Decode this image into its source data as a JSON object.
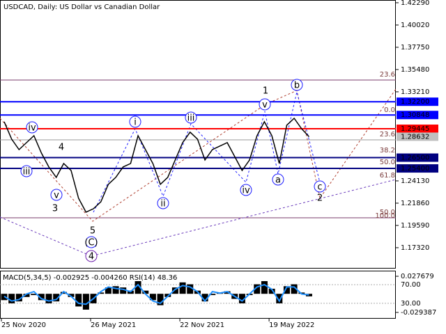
{
  "chart_data": [
    {
      "type": "line",
      "title": "USDCAD, Daily:  US Dollar vs Canadian Dollar",
      "categories": [
        "25 Nov 2020",
        null,
        null,
        null,
        null,
        null,
        null,
        null,
        null,
        null,
        null,
        null,
        "26 May 2021",
        null,
        null,
        null,
        null,
        null,
        null,
        null,
        null,
        null,
        null,
        null,
        "22 Nov 2021",
        null,
        null,
        null,
        null,
        null,
        null,
        null,
        null,
        null,
        null,
        null,
        "19 May 2022",
        null,
        null,
        null,
        null,
        null
      ],
      "values": [
        1.3016,
        1.2839,
        1.2732,
        1.2803,
        1.2874,
        1.2697,
        1.2555,
        1.2449,
        1.259,
        1.2519,
        1.2236,
        1.2094,
        1.2129,
        1.22,
        1.2378,
        1.2449,
        1.2555,
        1.259,
        1.2874,
        1.2732,
        1.259,
        1.2378,
        1.2449,
        1.2626,
        1.2803,
        1.291,
        1.2839,
        1.2626,
        1.2732,
        1.2768,
        1.2803,
        1.2661,
        1.2519,
        1.2626,
        1.2874,
        1.3016,
        1.2874,
        1.259,
        1.2981,
        1.3051,
        1.2945,
        1.2863
      ],
      "color": "#000000",
      "ylim": [
        1.1526,
        1.4257
      ],
      "yticks": [
        {
          "value": 1.4229,
          "label": "1.42290"
        },
        {
          "value": 1.4002,
          "label": "1.40020"
        },
        {
          "value": 1.3775,
          "label": "1.37750"
        },
        {
          "value": 1.3548,
          "label": "1.35480"
        },
        {
          "value": 1.3321,
          "label": "1.33210"
        },
        {
          "value": 1.2413,
          "label": "1.24130"
        },
        {
          "value": 1.2186,
          "label": "1.21860"
        },
        {
          "value": 1.1959,
          "label": "1.19590"
        },
        {
          "value": 1.1732,
          "label": "1.17320"
        }
      ],
      "levels": [
        {
          "value": 1.322,
          "label": "1.32200",
          "color": "#0000ff"
        },
        {
          "value": 1.30848,
          "label": "1.30848",
          "color": "#0000ff"
        },
        {
          "value": 1.29445,
          "label": "1.29445",
          "color": "#ff0000"
        },
        {
          "value": 1.265,
          "label": "1.26500",
          "color": "#000080"
        },
        {
          "value": 1.254,
          "label": "1.25400",
          "color": "#000080"
        }
      ],
      "current": {
        "value": 1.28632,
        "label": "1.28632",
        "color": "#c0c0c0"
      },
      "wave_labels": [
        "iv",
        "iii",
        "v",
        "4",
        "3",
        "5",
        "(C)",
        "4",
        "i",
        "ii",
        "iii",
        "iv",
        "v",
        "1",
        "a",
        "b",
        "c",
        "2"
      ],
      "fib_labels": [
        "23.6",
        "0.0",
        "23.6",
        "38.2",
        "50.0",
        "61.8",
        "50.0",
        "100.0"
      ]
    },
    {
      "type": "macd",
      "title": "MACD(5,34,5) -0.002925 -0.004260 RSI(14) 48.36",
      "values": [
        -0.01,
        -0.015,
        -0.012,
        -0.005,
        -0.002,
        -0.01,
        -0.015,
        -0.012,
        0.003,
        -0.005,
        -0.02,
        -0.025,
        -0.015,
        0.002,
        0.01,
        0.012,
        0.01,
        0.005,
        0.02,
        0.005,
        -0.01,
        -0.018,
        -0.005,
        0.01,
        0.018,
        0.015,
        0.005,
        -0.012,
        -0.002,
        0.002,
        0.004,
        -0.008,
        -0.015,
        -0.002,
        0.015,
        0.02,
        0.008,
        -0.015,
        0.012,
        0.015,
        0.002,
        -0.004
      ],
      "color": "#000000",
      "rsi_values": [
        45,
        35,
        38,
        50,
        55,
        40,
        35,
        38,
        55,
        45,
        30,
        28,
        40,
        55,
        65,
        62,
        60,
        55,
        70,
        50,
        35,
        30,
        45,
        60,
        68,
        65,
        55,
        35,
        55,
        52,
        55,
        45,
        35,
        50,
        65,
        70,
        60,
        35,
        65,
        65,
        50,
        48
      ],
      "rsi_color": "#1e90ff",
      "ylim": [
        -0.0371,
        0.0365
      ],
      "yticks": [
        0.027679,
        -0.029387
      ],
      "y2lim": [
        0,
        100
      ],
      "y2ticks": [
        {
          "value": 70,
          "label": "70.00"
        },
        {
          "value": 30,
          "label": "30.00"
        }
      ]
    }
  ]
}
